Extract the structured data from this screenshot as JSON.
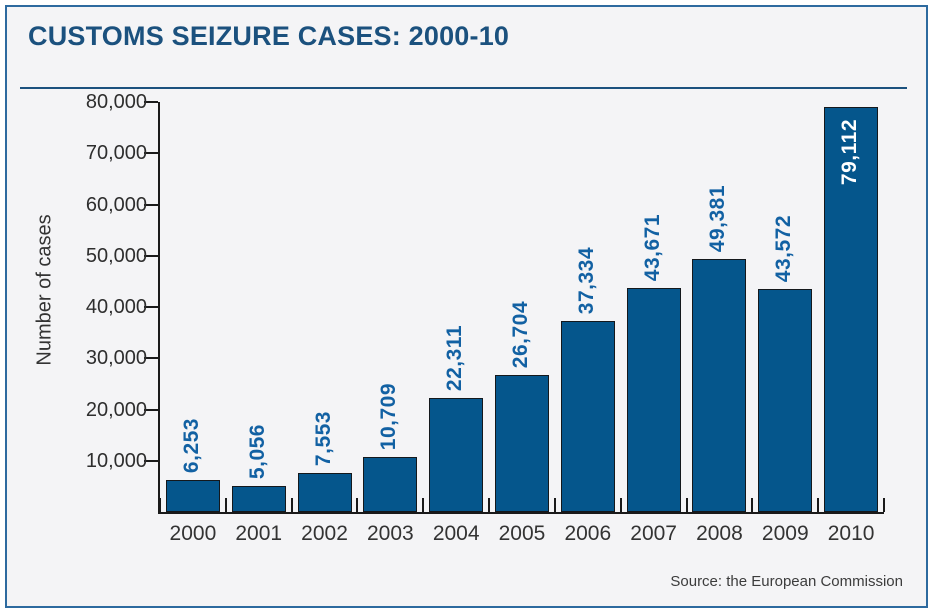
{
  "title": "CUSTOMS SEIZURE CASES: 2000-10",
  "source": "Source: the European Commission",
  "colors": {
    "bar_fill": "#05568c",
    "bar_outline": "#14181c",
    "value_label_blue": "#1261a3",
    "value_label_on_bar": "#ffffff",
    "title_blue": "#1b517e",
    "frame_border": "#2d6a9f",
    "panel_background": "#f4f4f6",
    "axis_black": "#1a1a1a",
    "tick_text": "#2e2e2e"
  },
  "chart_data": {
    "type": "bar",
    "title": "CUSTOMS SEIZURE CASES: 2000-10",
    "xlabel": "",
    "ylabel": "Number of cases",
    "categories": [
      "2000",
      "2001",
      "2002",
      "2003",
      "2004",
      "2005",
      "2006",
      "2007",
      "2008",
      "2009",
      "2010"
    ],
    "values": [
      6253,
      5056,
      7553,
      10709,
      22311,
      26704,
      37334,
      43671,
      49381,
      43572,
      79112
    ],
    "value_labels": [
      "6,253",
      "5,056",
      "7,553",
      "10,709",
      "22,311",
      "26,704",
      "37,334",
      "43,671",
      "49,381",
      "43,572",
      "79,112"
    ],
    "ylim": [
      0,
      80000
    ],
    "ytick_interval": 10000,
    "ytick_labels": [
      "10,000",
      "20,000",
      "30,000",
      "40,000",
      "50,000",
      "60,000",
      "70,000",
      "80,000"
    ],
    "grid": false,
    "legend": false,
    "value_label_rotation": -90,
    "last_bar_label_inside": true,
    "source": "Source: the European Commission"
  }
}
